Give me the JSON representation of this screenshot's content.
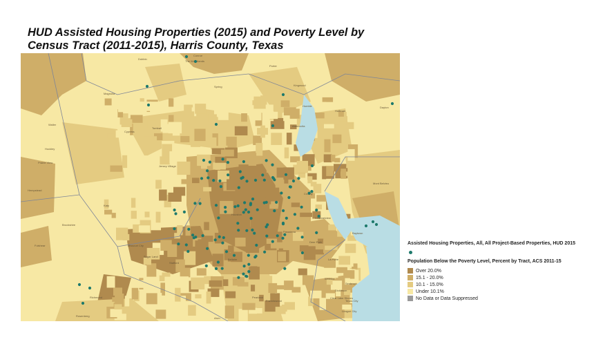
{
  "title": "HUD Assisted Housing Properties (2015) and Poverty Level by Census Tract (2011-2015), Harris County, Texas",
  "colors": {
    "over20": "#b08a4e",
    "p15to20": "#cfae68",
    "p10to15": "#e4cb81",
    "under10": "#f7e8a4",
    "nodata": "#9a9a9a",
    "water": "#b9dde4",
    "marker": "#1e7a6c",
    "boundary": "#7d8598"
  },
  "legend": {
    "markers_title": "Assisted Housing Properties, All, All Project-Based Properties, HUD 2015",
    "poverty_title": "Population Below the Poverty Level, Percent by Tract, ACS 2011-15",
    "classes": [
      {
        "label": "Over 20.0%",
        "color_key": "over20"
      },
      {
        "label": "15.1 - 20.0%",
        "color_key": "p15to20"
      },
      {
        "label": "10.1 - 15.0%",
        "color_key": "p10to15"
      },
      {
        "label": "Under 10.1%",
        "color_key": "under10"
      },
      {
        "label": "No Data or Data Suppressed",
        "color_key": "nodata"
      }
    ]
  },
  "place_labels": [
    "The Woodlands",
    "Spring",
    "Kingwood",
    "Atascocita",
    "Humble",
    "Tomball",
    "Cypress",
    "Jersey Village",
    "Katy",
    "Houston",
    "Pasadena",
    "Baytown",
    "Missouri City",
    "Sugar Land",
    "Pearland",
    "Friendswood",
    "Deer Park",
    "La Porte",
    "League City",
    "Mont Belvieu",
    "Dayton",
    "Huffman",
    "Crosby",
    "Channelview",
    "Fulshear",
    "Rosenberg",
    "Richmond",
    "Bellaire",
    "Conroe",
    "Porter",
    "Dobbin",
    "Magnolia",
    "Waller",
    "Hockley",
    "Prairie View",
    "Hempstead",
    "Brookshire",
    "Alvin",
    "Dickinson",
    "Webster",
    "Seabrook",
    "Stafford",
    "Texas City",
    "Clear Lake Shores"
  ],
  "housing_property_count": 130
}
